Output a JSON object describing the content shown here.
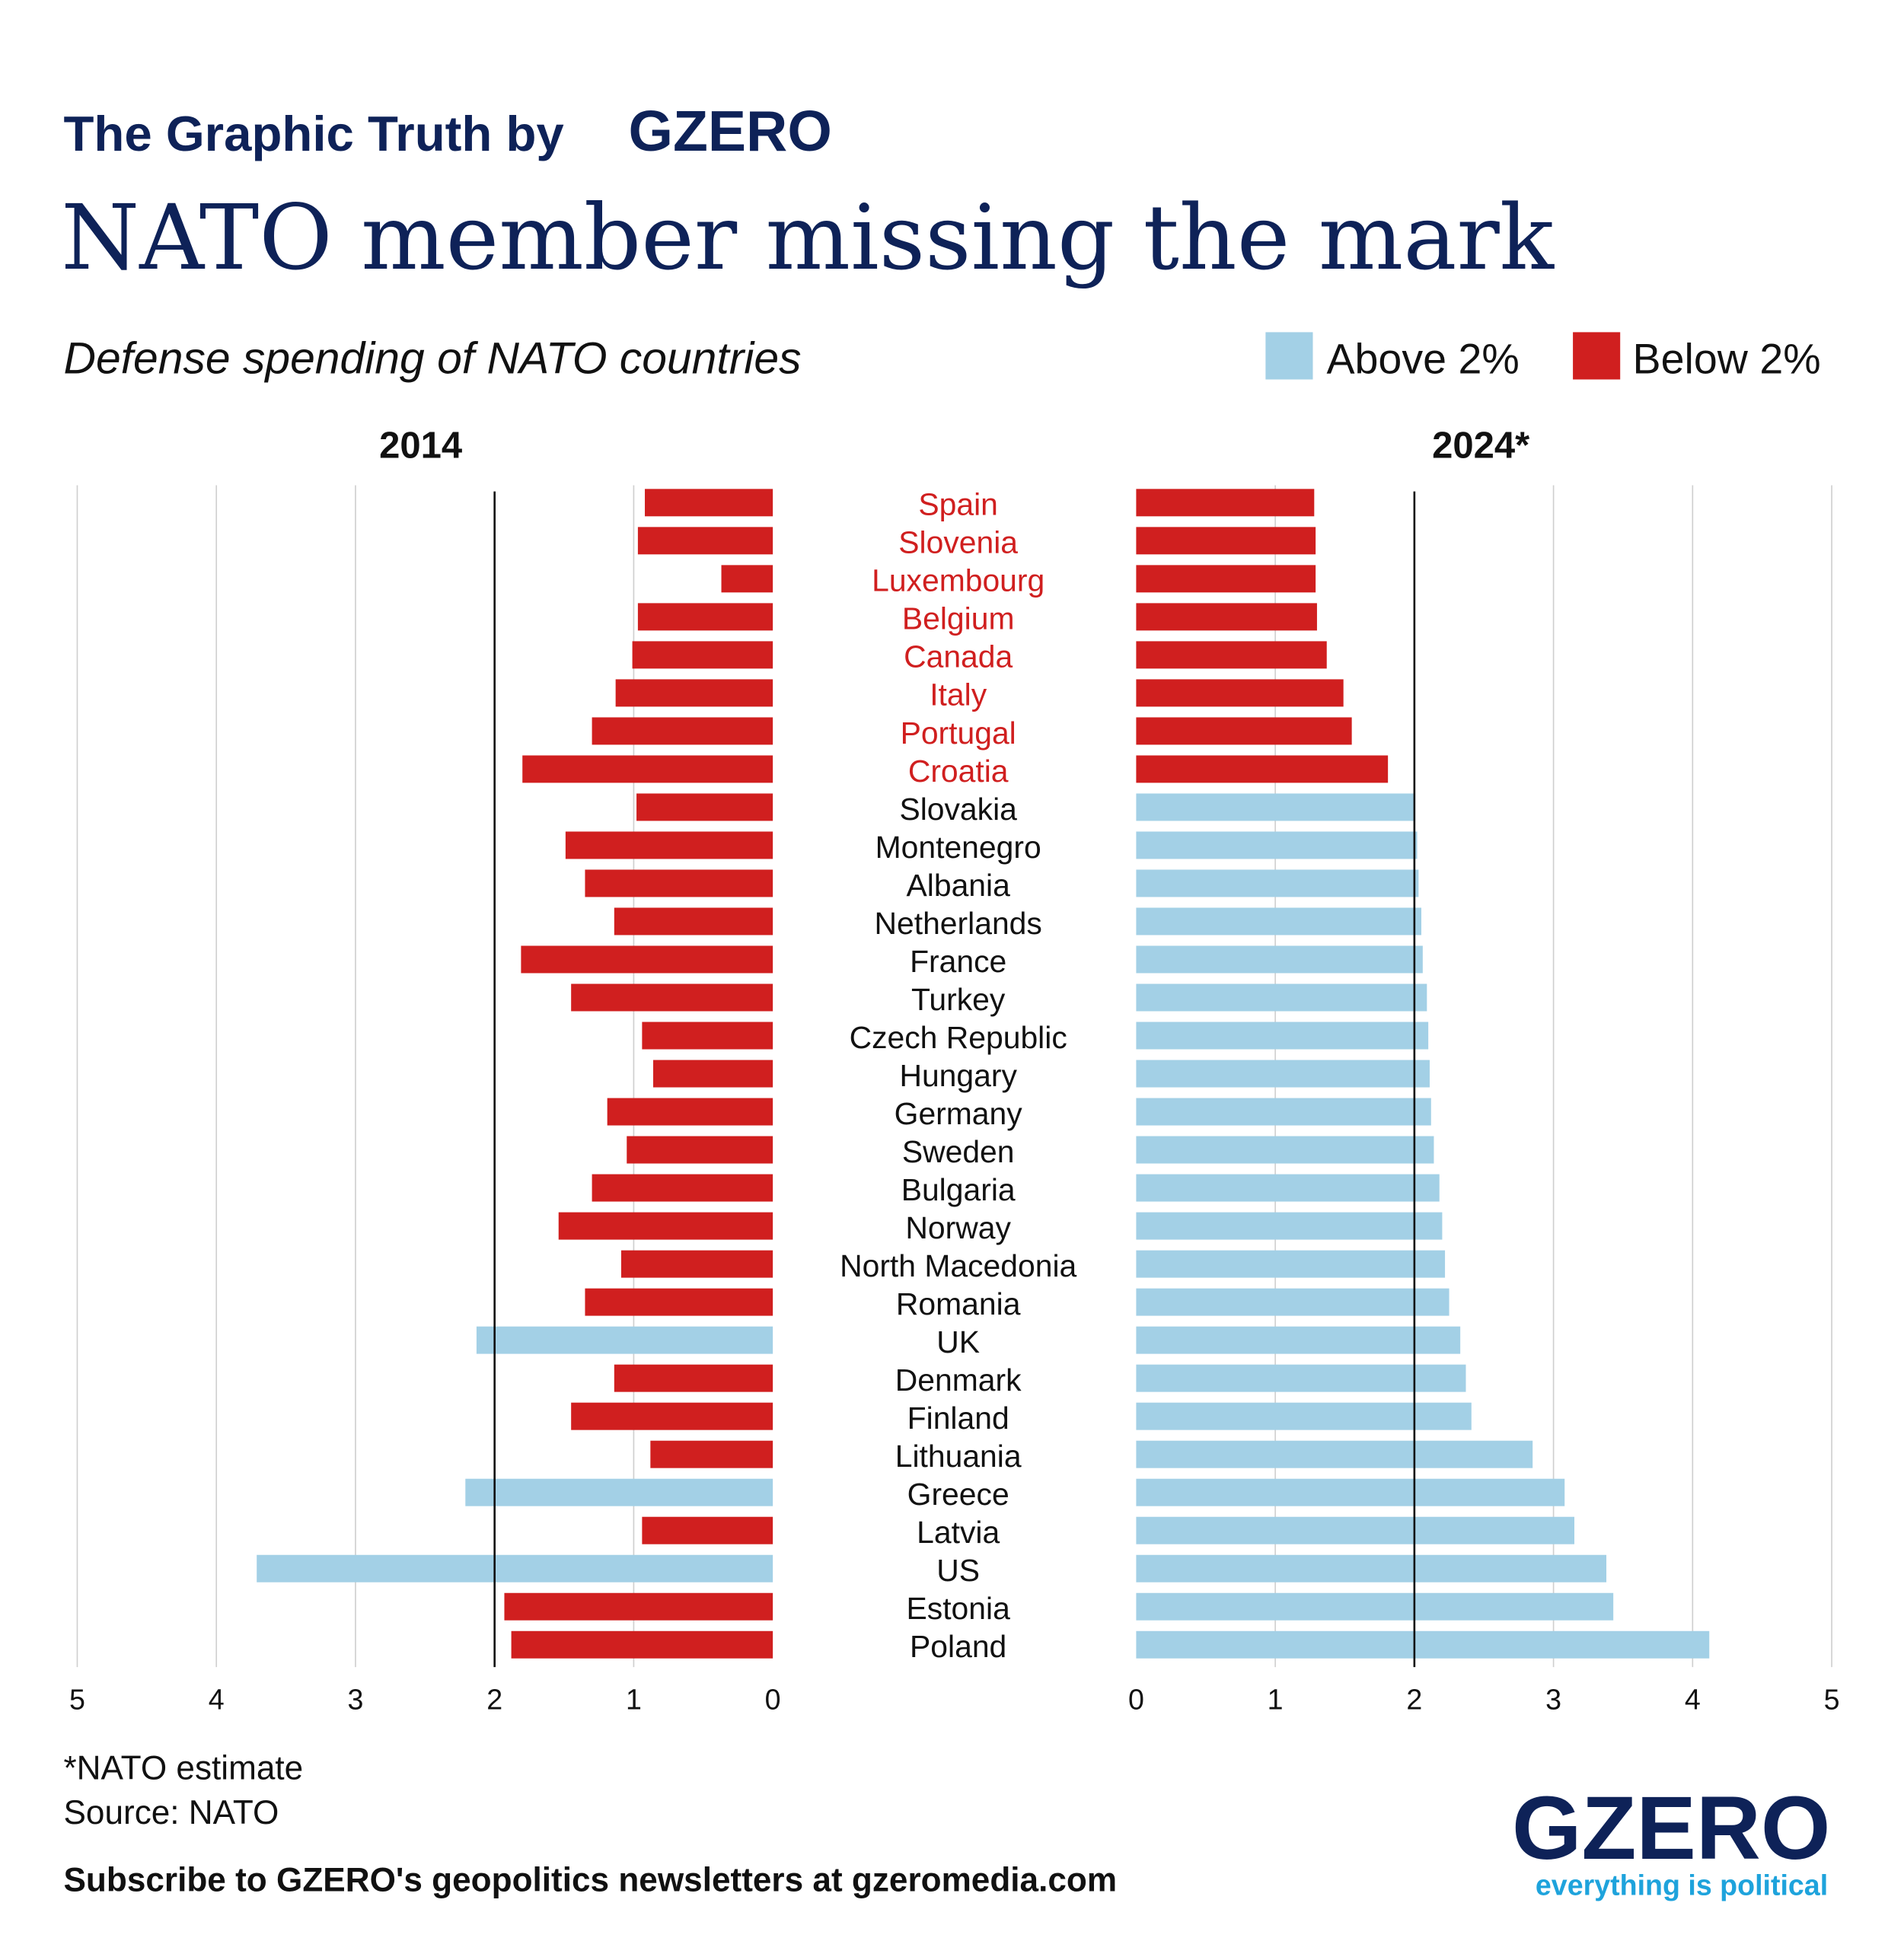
{
  "header": {
    "kicker": "The Graphic Truth by",
    "kicker_brand": "GZERO",
    "title": "NATO member missing the mark",
    "subtitle": "Defense spending of NATO countries"
  },
  "legend": {
    "above": {
      "label": "Above 2%",
      "color": "#a3d0e6"
    },
    "below": {
      "label": "Below 2%",
      "color": "#d01f1f"
    }
  },
  "footer": {
    "note": "*NATO estimate",
    "source": "Source: NATO",
    "cta": "Subscribe to GZERO's geopolitics newsletters at gzeromedia.com",
    "logo": "GZERO",
    "tagline": "everything is political"
  },
  "colors": {
    "navy": "#0e2258",
    "red": "#d01f1f",
    "blue": "#a3d0e6",
    "tagline": "#1ea3dc"
  },
  "chart_data": {
    "type": "bar",
    "orientation": "horizontal",
    "threshold": 2,
    "categories": [
      "Spain",
      "Slovenia",
      "Luxembourg",
      "Belgium",
      "Canada",
      "Italy",
      "Portugal",
      "Croatia",
      "Slovakia",
      "Montenegro",
      "Albania",
      "Netherlands",
      "France",
      "Turkey",
      "Czech Republic",
      "Hungary",
      "Germany",
      "Sweden",
      "Bulgaria",
      "Norway",
      "North Macedonia",
      "Romania",
      "UK",
      "Denmark",
      "Finland",
      "Lithuania",
      "Greece",
      "Latvia",
      "US",
      "Estonia",
      "Poland"
    ],
    "series": [
      {
        "name": "2014",
        "xlim": [
          0,
          5
        ],
        "ticks": [
          "0",
          "1",
          "2",
          "3",
          "4",
          "5"
        ],
        "values": [
          0.92,
          0.97,
          0.37,
          0.97,
          1.01,
          1.13,
          1.3,
          1.8,
          0.98,
          1.49,
          1.35,
          1.14,
          1.81,
          1.45,
          0.94,
          0.86,
          1.19,
          1.05,
          1.3,
          1.54,
          1.09,
          1.35,
          2.13,
          1.14,
          1.45,
          0.88,
          2.21,
          0.94,
          3.71,
          1.93,
          1.88
        ]
      },
      {
        "name": "2024*",
        "xlim": [
          0,
          5
        ],
        "ticks": [
          "0",
          "1",
          "2",
          "3",
          "4",
          "5"
        ],
        "values": [
          1.28,
          1.29,
          1.29,
          1.3,
          1.37,
          1.49,
          1.55,
          1.81,
          2.0,
          2.02,
          2.03,
          2.05,
          2.06,
          2.09,
          2.1,
          2.11,
          2.12,
          2.14,
          2.18,
          2.2,
          2.22,
          2.25,
          2.33,
          2.37,
          2.41,
          2.85,
          3.08,
          3.15,
          3.38,
          3.43,
          4.12
        ]
      }
    ],
    "grid": true
  }
}
